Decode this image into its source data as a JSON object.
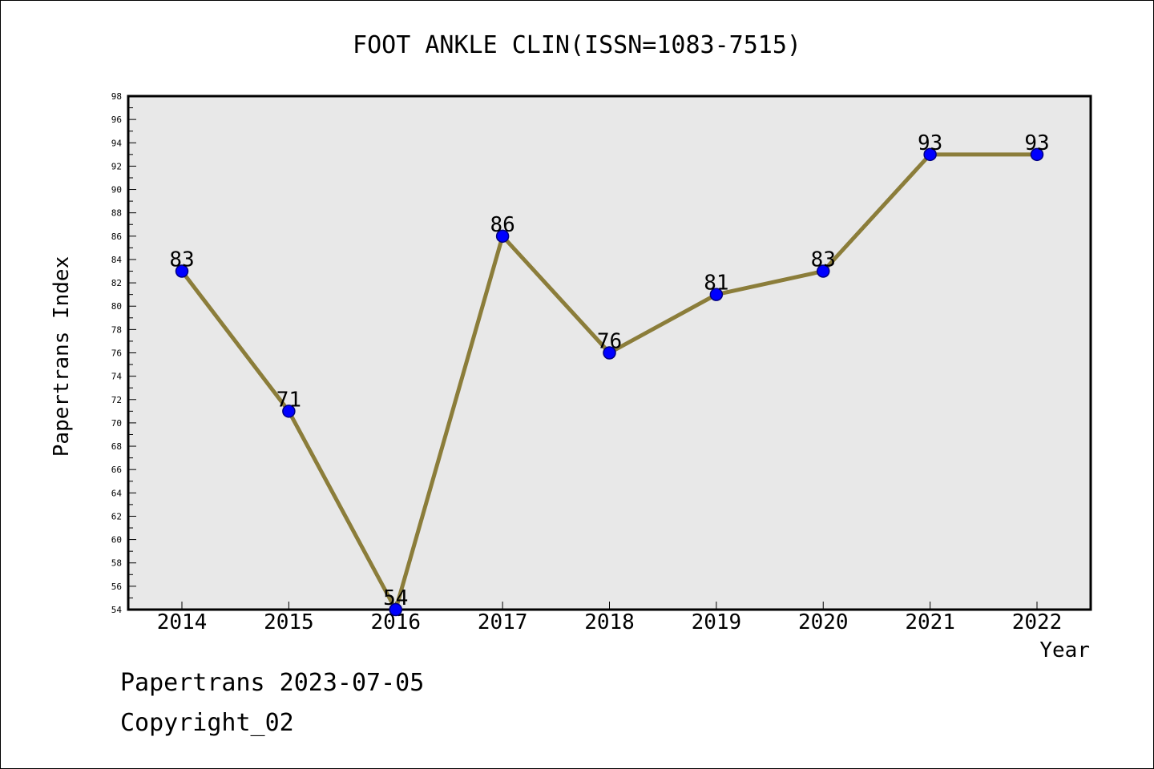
{
  "footer": {
    "line1": "Papertrans 2023-07-05",
    "line2": "Copyright_02"
  },
  "chart_data": {
    "type": "line",
    "title": "FOOT ANKLE CLIN(ISSN=1083-7515)",
    "xlabel": "Year",
    "ylabel": "Papertrans Index",
    "categories": [
      "2014",
      "2015",
      "2016",
      "2017",
      "2018",
      "2019",
      "2020",
      "2021",
      "2022"
    ],
    "series": [
      {
        "values": [
          83,
          71,
          54,
          86,
          76,
          81,
          83,
          93,
          93
        ]
      }
    ],
    "data_labels": [
      "83",
      "71",
      "54",
      "86",
      "76",
      "81",
      "83",
      "93",
      "93"
    ],
    "ylim": [
      54,
      98
    ],
    "yticks": [
      "54",
      "56",
      "58",
      "60",
      "62",
      "64",
      "66",
      "68",
      "70",
      "72",
      "74",
      "76",
      "78",
      "80",
      "82",
      "84",
      "86",
      "88",
      "90",
      "92",
      "94",
      "96",
      "98"
    ],
    "grid": false,
    "colors": {
      "plot_background": "#e8e8e8",
      "line": "#8b7d3a",
      "marker": "#0000ff",
      "marker_edge": "#000080"
    }
  }
}
